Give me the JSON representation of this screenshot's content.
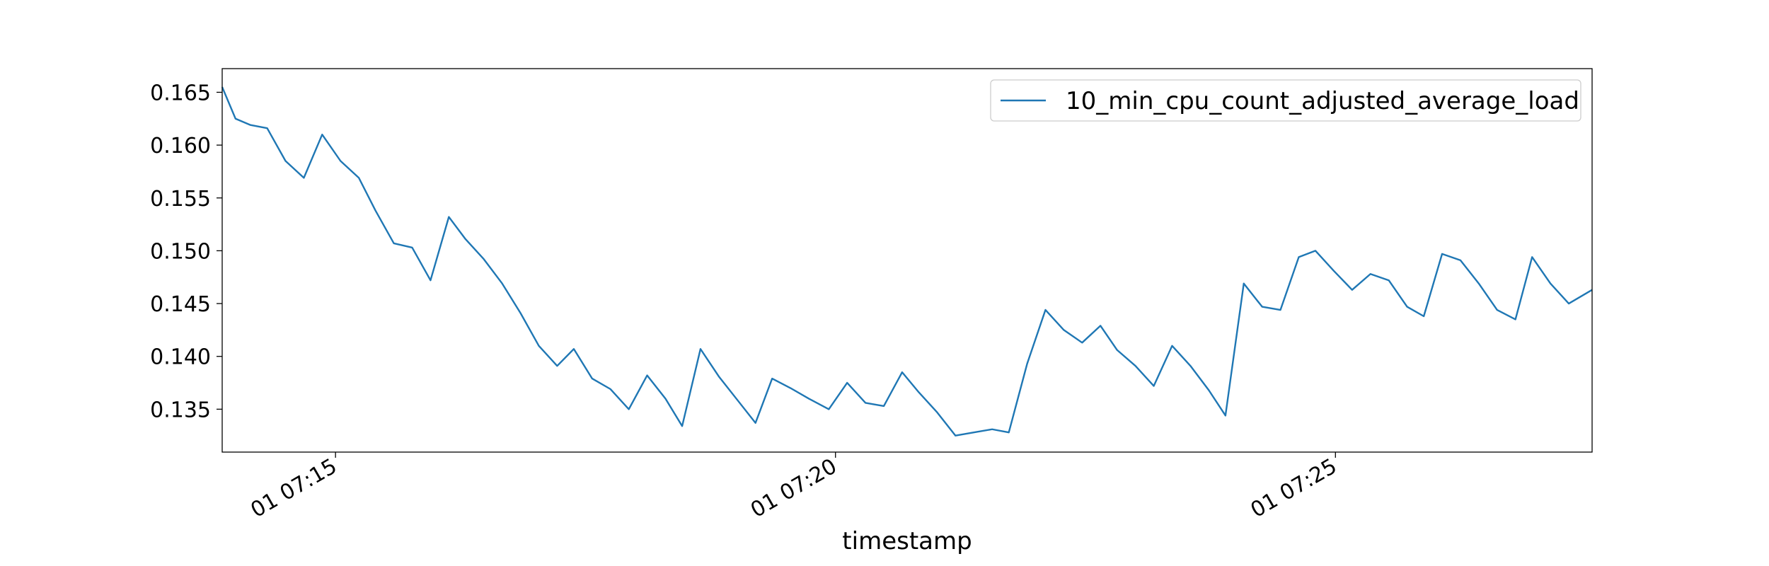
{
  "chart_data": {
    "type": "line",
    "xlabel": "timestamp",
    "x": [
      "01 07:13:52",
      "01 07:14:00",
      "01 07:14:09",
      "01 07:14:19",
      "01 07:14:30",
      "01 07:14:41",
      "01 07:14:52",
      "01 07:15:03",
      "01 07:15:14",
      "01 07:15:24",
      "01 07:15:35",
      "01 07:15:46",
      "01 07:15:57",
      "01 07:16:08",
      "01 07:16:18",
      "01 07:16:29",
      "01 07:16:40",
      "01 07:16:51",
      "01 07:17:02",
      "01 07:17:13",
      "01 07:17:23",
      "01 07:17:34",
      "01 07:17:45",
      "01 07:17:56",
      "01 07:18:07",
      "01 07:18:18",
      "01 07:18:28",
      "01 07:18:39",
      "01 07:18:50",
      "01 07:19:01",
      "01 07:19:12",
      "01 07:19:22",
      "01 07:19:33",
      "01 07:19:44",
      "01 07:19:56",
      "01 07:20:07",
      "01 07:20:18",
      "01 07:20:29",
      "01 07:20:40",
      "01 07:20:50",
      "01 07:21:01",
      "01 07:21:12",
      "01 07:21:23",
      "01 07:21:34",
      "01 07:21:44",
      "01 07:21:55",
      "01 07:22:06",
      "01 07:22:17",
      "01 07:22:28",
      "01 07:22:39",
      "01 07:22:49",
      "01 07:23:00",
      "01 07:23:11",
      "01 07:23:22",
      "01 07:23:33",
      "01 07:23:44",
      "01 07:23:54",
      "01 07:24:05",
      "01 07:24:16",
      "01 07:24:27",
      "01 07:24:38",
      "01 07:24:48",
      "01 07:24:59",
      "01 07:25:10",
      "01 07:25:21",
      "01 07:25:32",
      "01 07:25:43",
      "01 07:25:53",
      "01 07:26:04",
      "01 07:26:15",
      "01 07:26:26",
      "01 07:26:37",
      "01 07:26:48",
      "01 07:26:58",
      "01 07:27:09",
      "01 07:27:20",
      "01 07:27:34"
    ],
    "series": [
      {
        "name": "10_min_cpu_count_adjusted_average_load",
        "color": "#1f77b4",
        "values": [
          0.1655,
          0.1625,
          0.1619,
          0.1616,
          0.1585,
          0.1569,
          0.161,
          0.1585,
          0.1569,
          0.1538,
          0.1507,
          0.1503,
          0.1472,
          0.1532,
          0.1511,
          0.1492,
          0.1469,
          0.1441,
          0.141,
          0.1391,
          0.1407,
          0.1379,
          0.1369,
          0.135,
          0.1382,
          0.136,
          0.1334,
          0.1407,
          0.1381,
          0.1359,
          0.1337,
          0.1379,
          0.137,
          0.136,
          0.135,
          0.1375,
          0.1356,
          0.1353,
          0.1385,
          0.1366,
          0.1347,
          0.1325,
          0.1328,
          0.1331,
          0.1328,
          0.1393,
          0.1444,
          0.1425,
          0.1413,
          0.1429,
          0.1406,
          0.1391,
          0.1372,
          0.141,
          0.1391,
          0.1368,
          0.1344,
          0.1469,
          0.1447,
          0.1444,
          0.1494,
          0.15,
          0.1481,
          0.1463,
          0.1478,
          0.1472,
          0.1447,
          0.1438,
          0.1497,
          0.1491,
          0.1469,
          0.1444,
          0.1435,
          0.1494,
          0.1469,
          0.145,
          0.1463
        ]
      }
    ],
    "xlim": [
      "01 07:13:52",
      "01 07:27:34"
    ],
    "xticks": [
      "01 07:15",
      "01 07:20",
      "01 07:25"
    ],
    "ylim": [
      0.13094,
      0.16724
    ],
    "yticks": [
      0.135,
      {
        "value": 0.14,
        "label": "0.140"
      },
      0.145,
      {
        "value": 0.15,
        "label": "0.150"
      },
      0.155,
      {
        "value": 0.16,
        "label": "0.160"
      },
      0.165
    ],
    "legend": "upper right",
    "grid": false
  }
}
